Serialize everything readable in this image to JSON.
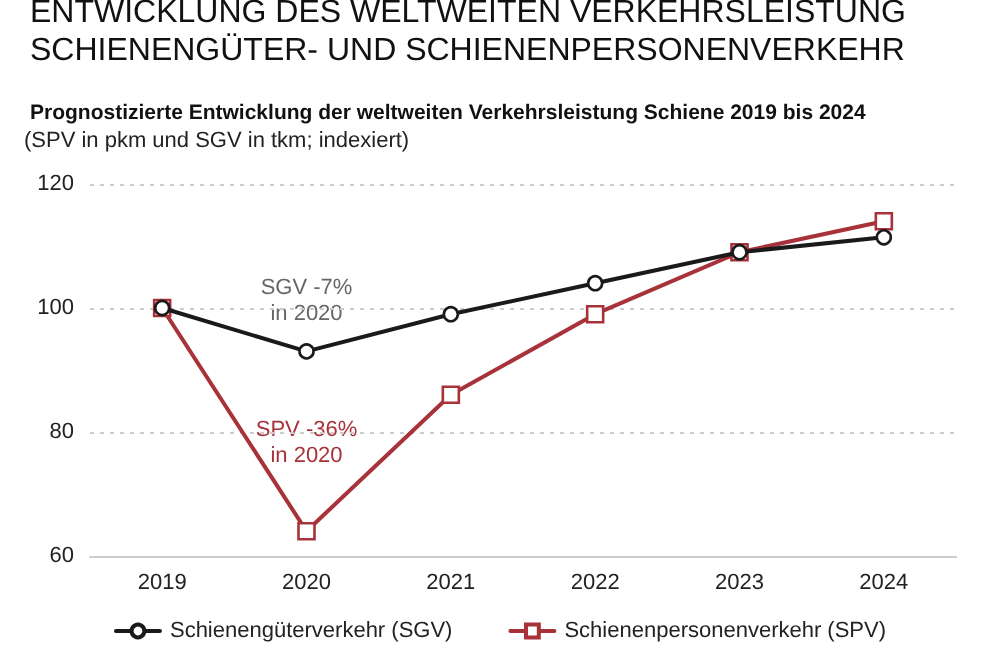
{
  "chart_data": {
    "type": "line",
    "title": "ENTWICKLUNG DES WELTWEITEN VERKEHRSLEISTUNG\nSCHIENENGÜTER- UND SCHIENENPERSONENVERKEHR",
    "subtitle": "Prognostizierte Entwicklung der weltweiten Verkehrsleistung Schiene 2019 bis 2024",
    "categories": [
      "2019",
      "2020",
      "2021",
      "2022",
      "2023",
      "2024"
    ],
    "series": [
      {
        "name": "Schienengüterverkehr (SGV)",
        "color": "#1a1a1a",
        "marker": "circle",
        "values": [
          100,
          93,
          99,
          104,
          109,
          111.4
        ]
      },
      {
        "name": "Schienenpersonenverkehr (SPV)",
        "color": "#a8323a",
        "marker": "square",
        "values": [
          100,
          64,
          86,
          99,
          109,
          114
        ]
      }
    ],
    "annotations": [
      "(SPV in pkm und SGV in tkm; indexiert)",
      {
        "text": "SGV -7%\nin 2020",
        "x": "2020",
        "y": 93
      },
      {
        "text": "SPV -36%\nin 2020",
        "x": "2020",
        "y": 64
      }
    ],
    "ylim": [
      60,
      120
    ],
    "yticks": [
      60,
      80,
      100,
      120
    ],
    "grid": "y",
    "legend": "bottom",
    "line_style": "solid"
  }
}
